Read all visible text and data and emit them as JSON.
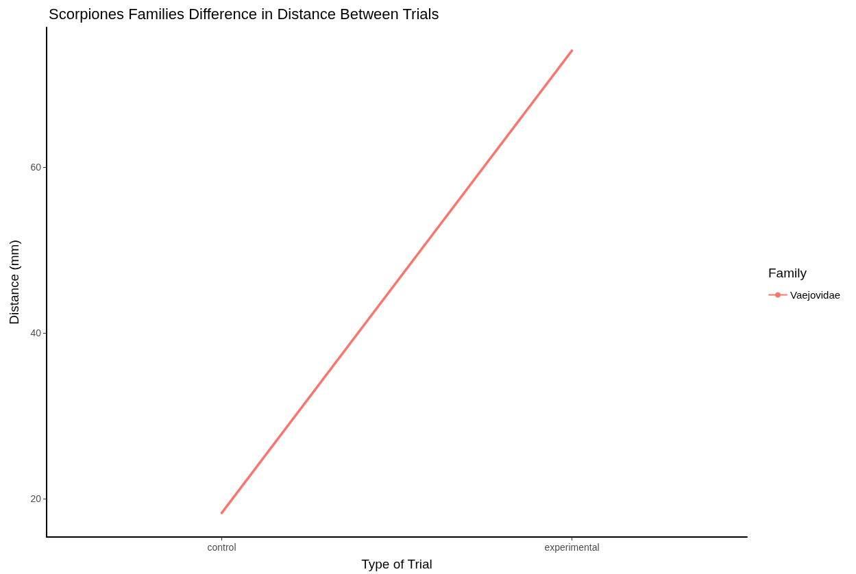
{
  "chart_data": {
    "type": "line",
    "title": "Scorpiones Families Difference in Distance Between Trials",
    "xlabel": "Type of Trial",
    "ylabel": "Distance (mm)",
    "legend_title": "Family",
    "categories": [
      "control",
      "experimental"
    ],
    "series": [
      {
        "name": "Vaejovidae",
        "color": "#f8766d",
        "values": [
          18.3,
          74.1
        ]
      }
    ],
    "ylim": [
      15.4,
      76.9
    ],
    "yticks": [
      20,
      40,
      60
    ],
    "grid": false,
    "legend": "right",
    "marker": "none",
    "line_style": "solid"
  }
}
